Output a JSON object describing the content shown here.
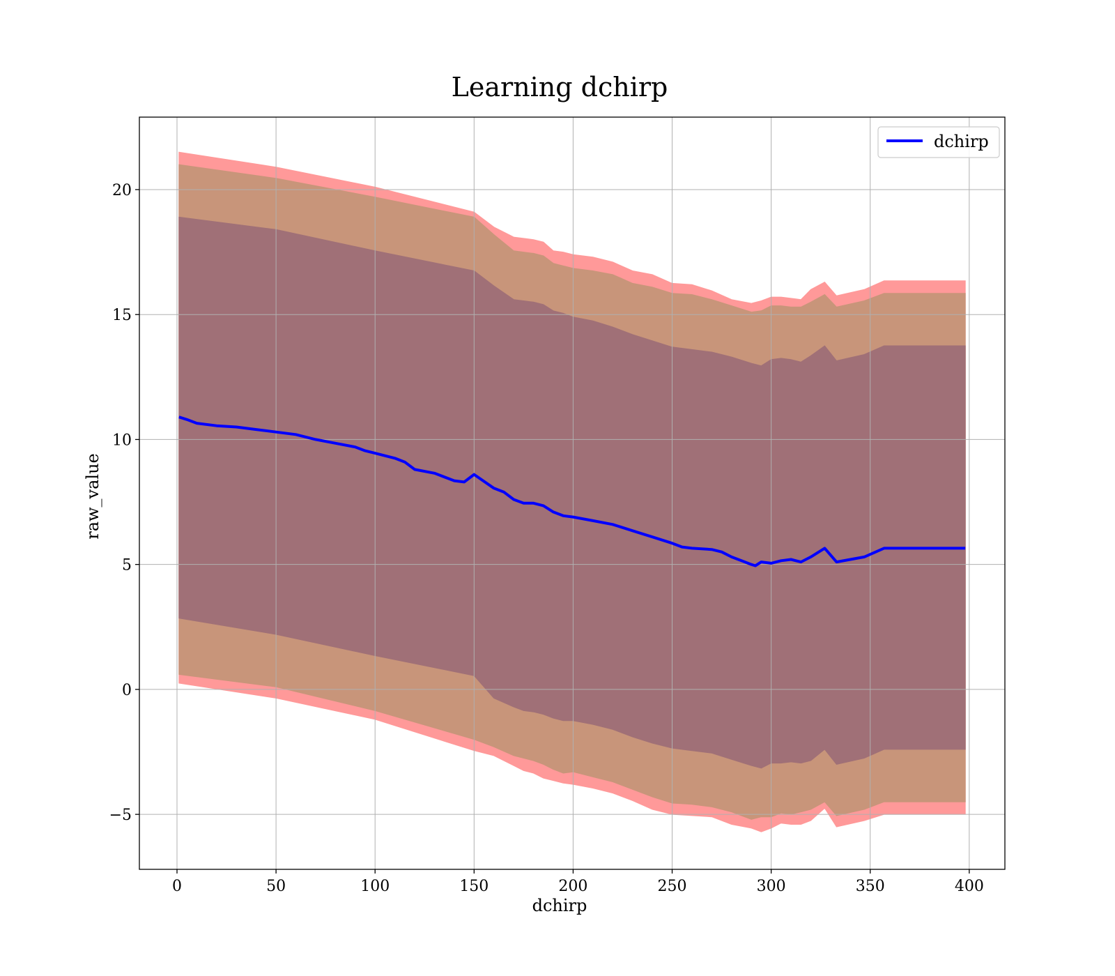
{
  "chart_data": {
    "type": "line",
    "title": "Learning dchirp",
    "xlabel": "dchirp",
    "ylabel": "raw_value",
    "xlim": [
      -19,
      418
    ],
    "ylim": [
      -7.2,
      22.9
    ],
    "xticks": [
      0,
      50,
      100,
      150,
      200,
      250,
      300,
      350,
      400
    ],
    "yticks": [
      -5,
      0,
      5,
      10,
      15,
      20
    ],
    "ytick_labels": [
      "−5",
      "0",
      "5",
      "10",
      "15",
      "20"
    ],
    "grid": true,
    "legend": {
      "position": "top-right",
      "entries": [
        "dchirp"
      ]
    },
    "series": [
      {
        "name": "dchirp",
        "color": "#0000ff",
        "x": [
          1,
          5,
          10,
          20,
          30,
          40,
          50,
          60,
          70,
          80,
          90,
          95,
          100,
          110,
          115,
          120,
          130,
          140,
          145,
          150,
          160,
          165,
          170,
          175,
          180,
          185,
          190,
          195,
          200,
          210,
          220,
          230,
          240,
          250,
          255,
          260,
          270,
          275,
          280,
          285,
          290,
          292,
          295,
          300,
          305,
          310,
          315,
          320,
          327,
          333,
          340,
          347,
          357,
          365,
          375,
          385,
          398
        ],
        "y": [
          10.9,
          10.8,
          10.65,
          10.55,
          10.5,
          10.4,
          10.3,
          10.2,
          10.0,
          9.85,
          9.7,
          9.55,
          9.45,
          9.25,
          9.1,
          8.8,
          8.65,
          8.35,
          8.3,
          8.6,
          8.05,
          7.9,
          7.6,
          7.45,
          7.45,
          7.35,
          7.1,
          6.95,
          6.9,
          6.75,
          6.6,
          6.35,
          6.1,
          5.85,
          5.7,
          5.65,
          5.6,
          5.5,
          5.3,
          5.15,
          5.0,
          4.95,
          5.1,
          5.05,
          5.15,
          5.2,
          5.1,
          5.3,
          5.65,
          5.1,
          5.2,
          5.3,
          5.65,
          5.65,
          5.65,
          5.65,
          5.65
        ]
      }
    ],
    "bands": [
      {
        "name": "outer band",
        "color": "#ff9999",
        "x": [
          1,
          50,
          100,
          150,
          160,
          170,
          175,
          180,
          185,
          190,
          195,
          200,
          210,
          220,
          230,
          240,
          250,
          260,
          270,
          280,
          290,
          295,
          300,
          305,
          310,
          315,
          320,
          327,
          333,
          347,
          357,
          398
        ],
        "upper": [
          21.5,
          20.9,
          20.1,
          19.1,
          18.5,
          18.1,
          18.05,
          18.0,
          17.9,
          17.55,
          17.5,
          17.4,
          17.3,
          17.1,
          16.75,
          16.6,
          16.25,
          16.2,
          15.95,
          15.6,
          15.45,
          15.55,
          15.7,
          15.7,
          15.65,
          15.6,
          16.0,
          16.3,
          15.75,
          16.0,
          16.35,
          16.35
        ],
        "lower": [
          0.25,
          -0.35,
          -1.2,
          -2.45,
          -2.65,
          -3.05,
          -3.25,
          -3.35,
          -3.55,
          -3.65,
          -3.75,
          -3.8,
          -3.95,
          -4.15,
          -4.45,
          -4.8,
          -5.0,
          -5.05,
          -5.1,
          -5.4,
          -5.55,
          -5.7,
          -5.55,
          -5.35,
          -5.4,
          -5.4,
          -5.25,
          -4.75,
          -5.5,
          -5.25,
          -5.0,
          -5.0
        ]
      },
      {
        "name": "middle band",
        "color": "#c8957a",
        "x": [
          1,
          50,
          100,
          150,
          160,
          170,
          175,
          180,
          185,
          190,
          195,
          200,
          210,
          220,
          230,
          240,
          250,
          260,
          270,
          280,
          290,
          295,
          300,
          305,
          310,
          315,
          320,
          327,
          333,
          347,
          357,
          398
        ],
        "upper": [
          21.0,
          20.45,
          19.7,
          18.9,
          18.2,
          17.55,
          17.5,
          17.45,
          17.35,
          17.05,
          16.95,
          16.85,
          16.75,
          16.6,
          16.25,
          16.1,
          15.85,
          15.8,
          15.6,
          15.35,
          15.1,
          15.15,
          15.35,
          15.35,
          15.3,
          15.3,
          15.5,
          15.8,
          15.3,
          15.55,
          15.85,
          15.85
        ],
        "lower": [
          0.6,
          0.1,
          -0.85,
          -2.0,
          -2.3,
          -2.65,
          -2.75,
          -2.85,
          -3.0,
          -3.2,
          -3.35,
          -3.3,
          -3.5,
          -3.7,
          -4.0,
          -4.3,
          -4.55,
          -4.6,
          -4.7,
          -4.9,
          -5.2,
          -5.1,
          -5.1,
          -4.95,
          -5.0,
          -4.9,
          -4.8,
          -4.5,
          -5.05,
          -4.8,
          -4.5,
          -4.5
        ]
      },
      {
        "name": "inner band",
        "color": "#a07077",
        "x": [
          1,
          50,
          100,
          150,
          160,
          170,
          175,
          180,
          185,
          190,
          195,
          200,
          210,
          220,
          230,
          240,
          250,
          260,
          270,
          280,
          290,
          295,
          300,
          305,
          310,
          315,
          320,
          327,
          333,
          347,
          357,
          398
        ],
        "upper": [
          18.9,
          18.4,
          17.55,
          16.75,
          16.15,
          15.6,
          15.55,
          15.5,
          15.4,
          15.15,
          15.05,
          14.9,
          14.75,
          14.5,
          14.2,
          13.95,
          13.7,
          13.6,
          13.5,
          13.3,
          13.05,
          12.95,
          13.2,
          13.25,
          13.2,
          13.1,
          13.35,
          13.75,
          13.15,
          13.4,
          13.75,
          13.75
        ],
        "lower": [
          2.85,
          2.2,
          1.35,
          0.55,
          -0.35,
          -0.7,
          -0.85,
          -0.9,
          -1.0,
          -1.15,
          -1.25,
          -1.25,
          -1.4,
          -1.6,
          -1.9,
          -2.15,
          -2.35,
          -2.45,
          -2.55,
          -2.8,
          -3.05,
          -3.15,
          -2.95,
          -2.95,
          -2.9,
          -2.95,
          -2.85,
          -2.4,
          -3.0,
          -2.75,
          -2.4,
          -2.4
        ]
      }
    ]
  }
}
